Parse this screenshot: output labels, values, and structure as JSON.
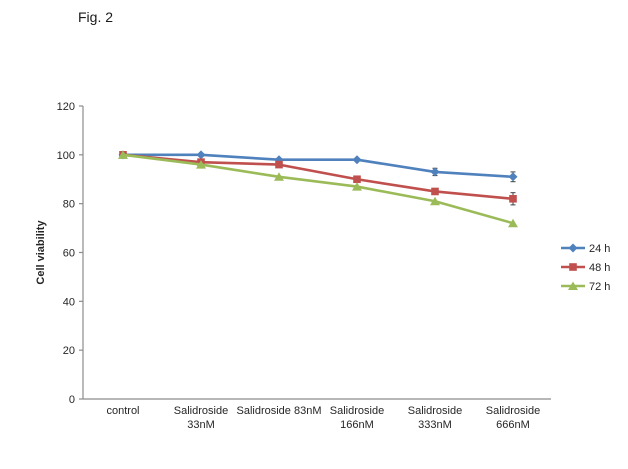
{
  "figure_label": "Fig. 2",
  "chart_data": {
    "type": "line",
    "title": "",
    "xlabel": "",
    "ylabel": "Cell viability",
    "ylim": [
      0,
      120
    ],
    "yticks": [
      0,
      20,
      40,
      60,
      80,
      100,
      120
    ],
    "grid": false,
    "legend_position": "right",
    "categories": [
      "control",
      "Salidroside 33nM",
      "Salidroside 83nM",
      "Salidroside 166nM",
      "Salidroside 333nM",
      "Salidroside 666nM"
    ],
    "categories_display": [
      [
        "control"
      ],
      [
        "Salidroside",
        "33nM"
      ],
      [
        "Salidroside 83nM"
      ],
      [
        "Salidroside",
        "166nM"
      ],
      [
        "Salidroside",
        "333nM"
      ],
      [
        "Salidroside",
        "666nM"
      ]
    ],
    "series": [
      {
        "name": "24 h",
        "marker": "diamond",
        "color": "#4F81BD",
        "values": [
          100,
          100,
          98,
          98,
          93,
          91
        ],
        "error_bars": [
          0,
          0,
          0,
          0,
          1.5,
          2
        ]
      },
      {
        "name": "48 h",
        "marker": "square",
        "color": "#C0504D",
        "values": [
          100,
          97,
          96,
          90,
          85,
          82
        ],
        "error_bars": [
          0,
          0,
          0,
          0,
          0,
          2.5
        ]
      },
      {
        "name": "72 h",
        "marker": "triangle",
        "color": "#9BBB59",
        "values": [
          100,
          96,
          91,
          87,
          81,
          72
        ],
        "error_bars": [
          0,
          0,
          0,
          0,
          0,
          0
        ]
      }
    ],
    "axis_color": "#8c8c8c",
    "error_bar_color": "#404040"
  }
}
